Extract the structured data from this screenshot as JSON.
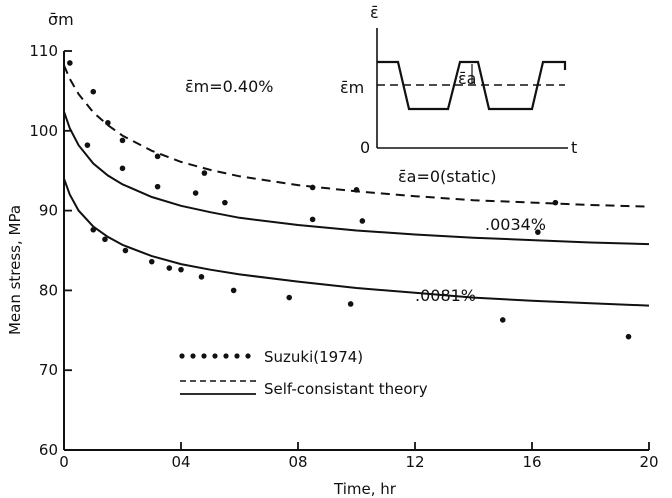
{
  "chart_data": {
    "type": "line",
    "xlabel": "Time, hr",
    "ylabel": "Mean stress, MPa",
    "y_symbol": "σ̄m",
    "xlim": [
      0,
      2.0
    ],
    "ylim": [
      60,
      110
    ],
    "x_ticks": [
      0,
      0.4,
      0.8,
      1.2,
      1.6,
      2.0
    ],
    "x_tick_labels": [
      "0",
      "04",
      "08",
      "12",
      "16",
      "20"
    ],
    "y_ticks": [
      60,
      70,
      80,
      90,
      100,
      110
    ],
    "y_tick_labels": [
      "60",
      "70",
      "80",
      "90",
      "100",
      "110"
    ],
    "annotations": {
      "mean_strain": "ε̄m=0.40%",
      "curve_static": "ε̄a=0(static)",
      "curve_0034": ".0034%",
      "curve_0081": ".0081%"
    },
    "legend": {
      "placement": "bottom-left",
      "entries": [
        {
          "label": "Suzuki(1974)",
          "style": "dots"
        },
        {
          "label": "Self-consistant theory",
          "style": "dashed"
        },
        {
          "label": "",
          "style": "solid"
        }
      ]
    },
    "series": [
      {
        "style": "dashed",
        "x": [
          0,
          0.02,
          0.05,
          0.1,
          0.15,
          0.2,
          0.3,
          0.4,
          0.5,
          0.6,
          0.8,
          1.0,
          1.2,
          1.4,
          1.6,
          1.8,
          2.0
        ],
        "y": [
          108.2,
          106.5,
          104.6,
          102.3,
          100.7,
          99.4,
          97.5,
          96.1,
          95.1,
          94.3,
          93.2,
          92.4,
          91.8,
          91.3,
          91.0,
          90.7,
          90.5
        ]
      },
      {
        "style": "solid",
        "x": [
          0,
          0.02,
          0.05,
          0.1,
          0.15,
          0.2,
          0.3,
          0.4,
          0.5,
          0.6,
          0.8,
          1.0,
          1.2,
          1.4,
          1.6,
          1.8,
          2.0
        ],
        "y": [
          102.4,
          100.3,
          98.2,
          95.9,
          94.4,
          93.3,
          91.7,
          90.6,
          89.8,
          89.1,
          88.2,
          87.5,
          87.0,
          86.6,
          86.3,
          86.0,
          85.8
        ]
      },
      {
        "style": "solid",
        "x": [
          0,
          0.02,
          0.05,
          0.1,
          0.15,
          0.2,
          0.3,
          0.4,
          0.5,
          0.6,
          0.8,
          1.0,
          1.2,
          1.4,
          1.6,
          1.8,
          2.0
        ],
        "y": [
          94.0,
          92.0,
          90.0,
          88.0,
          86.7,
          85.7,
          84.3,
          83.3,
          82.6,
          82.0,
          81.1,
          80.3,
          79.7,
          79.1,
          78.7,
          78.4,
          78.1
        ]
      }
    ],
    "scatter": {
      "name": "Suzuki(1974)",
      "points": [
        [
          0.02,
          108.5
        ],
        [
          0.1,
          104.9
        ],
        [
          0.15,
          101.0
        ],
        [
          0.2,
          98.8
        ],
        [
          0.32,
          96.8
        ],
        [
          0.48,
          94.7
        ],
        [
          0.85,
          92.9
        ],
        [
          1.0,
          92.6
        ],
        [
          1.68,
          91.0
        ],
        [
          0.08,
          98.2
        ],
        [
          0.2,
          95.3
        ],
        [
          0.32,
          93.0
        ],
        [
          0.45,
          92.2
        ],
        [
          0.55,
          91.0
        ],
        [
          0.85,
          88.9
        ],
        [
          1.02,
          88.7
        ],
        [
          1.62,
          87.3
        ],
        [
          0.1,
          87.6
        ],
        [
          0.14,
          86.4
        ],
        [
          0.21,
          85.0
        ],
        [
          0.3,
          83.6
        ],
        [
          0.36,
          82.8
        ],
        [
          0.4,
          82.6
        ],
        [
          0.47,
          81.7
        ],
        [
          0.58,
          80.0
        ],
        [
          0.77,
          79.1
        ],
        [
          0.98,
          78.3
        ],
        [
          1.5,
          76.3
        ],
        [
          1.93,
          74.2
        ]
      ]
    },
    "inset": {
      "y_symbol": "ε̄",
      "y_label": "ε̄m",
      "amp_label": "ε̄a",
      "origin_label": "0",
      "x_label": "t"
    }
  }
}
